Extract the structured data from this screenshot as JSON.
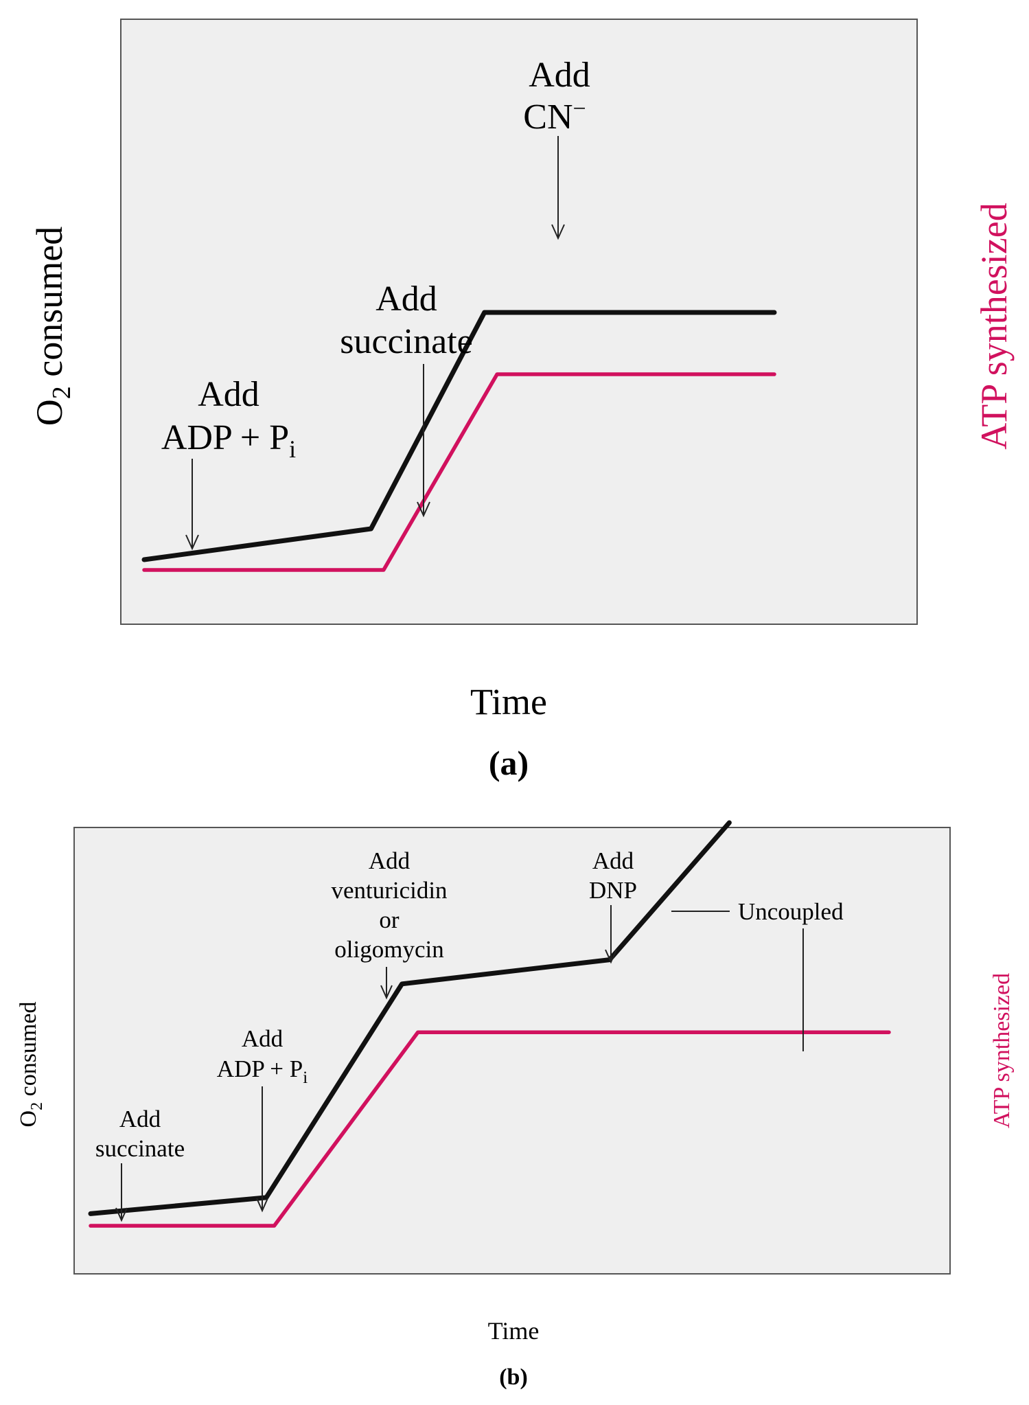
{
  "chart_data": [
    {
      "panel": "(a)",
      "type": "line",
      "xlabel": "Time",
      "ylabel_left": "O2 consumed",
      "ylabel_left_parts": {
        "base": "O",
        "sub": "2",
        "rest": " consumed"
      },
      "ylabel_right": "ATP synthesized",
      "series": [
        {
          "key": "o2",
          "color": "#111111",
          "points": [
            [
              0.0,
              0.03
            ],
            [
              0.36,
              0.12
            ],
            [
              0.54,
              0.75
            ],
            [
              1.0,
              0.75
            ]
          ]
        },
        {
          "key": "atp",
          "color": "#d1115e",
          "points": [
            [
              0.0,
              0.0
            ],
            [
              0.38,
              0.0
            ],
            [
              0.56,
              0.57
            ],
            [
              1.0,
              0.57
            ]
          ]
        }
      ],
      "annotations": [
        {
          "key": "adp",
          "lines": [
            "Add",
            "ADP + Pi"
          ],
          "line2_parts": {
            "base": "ADP + P",
            "sub": "i"
          }
        },
        {
          "key": "succinate",
          "lines": [
            "Add",
            "succinate"
          ]
        },
        {
          "key": "cn",
          "lines": [
            "Add",
            "CN−"
          ],
          "line2_parts": {
            "base": "CN",
            "sup": "−"
          }
        }
      ]
    },
    {
      "panel": "(b)",
      "type": "line",
      "xlabel": "Time",
      "ylabel_left": "O2 consumed",
      "ylabel_left_parts": {
        "base": "O",
        "sub": "2",
        "rest": " consumed"
      },
      "ylabel_right": "ATP synthesized",
      "series": [
        {
          "key": "o2",
          "color": "#111111",
          "points": [
            [
              0.0,
              0.03
            ],
            [
              0.22,
              0.07
            ],
            [
              0.39,
              0.6
            ],
            [
              0.65,
              0.66
            ],
            [
              0.8,
              1.0
            ]
          ]
        },
        {
          "key": "atp",
          "color": "#d1115e",
          "points": [
            [
              0.0,
              0.0
            ],
            [
              0.23,
              0.0
            ],
            [
              0.41,
              0.48
            ],
            [
              1.0,
              0.48
            ]
          ]
        }
      ],
      "annotations": [
        {
          "key": "succinate",
          "lines": [
            "Add",
            "succinate"
          ]
        },
        {
          "key": "adp",
          "lines": [
            "Add",
            "ADP + Pi"
          ],
          "line2_parts": {
            "base": "ADP + P",
            "sub": "i"
          }
        },
        {
          "key": "inhibitor",
          "lines": [
            "Add",
            "venturicidin",
            "or",
            "oligomycin"
          ]
        },
        {
          "key": "dnp",
          "lines": [
            "Add",
            "DNP"
          ]
        },
        {
          "key": "uncoupled",
          "lines": [
            "Uncoupled"
          ]
        }
      ]
    }
  ]
}
